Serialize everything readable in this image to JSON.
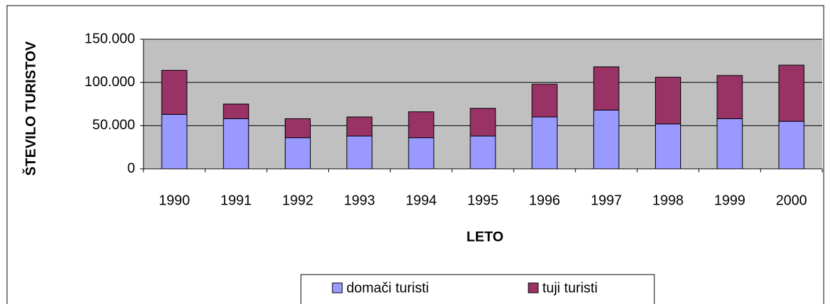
{
  "chart_data": {
    "type": "bar",
    "stacked": true,
    "xlabel": "LETO",
    "ylabel": "ŠTEVILO TURISTOV",
    "categories": [
      "1990",
      "1991",
      "1992",
      "1993",
      "1994",
      "1995",
      "1996",
      "1997",
      "1998",
      "1999",
      "2000"
    ],
    "series": [
      {
        "name": "domači turisti",
        "color": "#9999ff",
        "values": [
          63000,
          58000,
          36000,
          38000,
          36000,
          38000,
          60000,
          68000,
          52000,
          58000,
          55000
        ]
      },
      {
        "name": "tuji turisti",
        "color": "#993366",
        "values": [
          51000,
          17000,
          22000,
          22000,
          30000,
          32000,
          38000,
          50000,
          54000,
          50000,
          65000
        ]
      }
    ],
    "ylim": [
      0,
      150000
    ],
    "yticks": [
      0,
      {
        "value": 50000,
        "label": "50.000"
      },
      {
        "value": 100000,
        "label": "100.000"
      },
      {
        "value": 150000,
        "label": "150.000"
      }
    ],
    "grid": true,
    "legend": "bottom"
  }
}
